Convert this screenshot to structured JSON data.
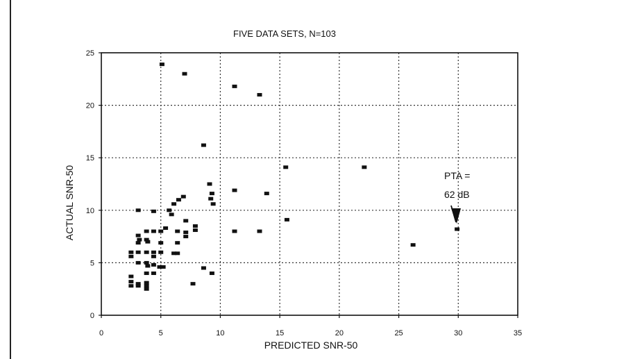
{
  "chart_data": {
    "type": "scatter",
    "title": "FIVE DATA SETS, N=103",
    "xlabel": "PREDICTED SNR-50",
    "ylabel": "ACTUAL SNR-50",
    "xlim": [
      0,
      35
    ],
    "ylim": [
      0,
      25
    ],
    "xticks": [
      0,
      5,
      10,
      15,
      20,
      25,
      30,
      35
    ],
    "yticks": [
      0,
      5,
      10,
      15,
      20,
      25
    ],
    "grid": true,
    "marker": "square",
    "color": "#111111",
    "annotation": {
      "line1": "PTA =",
      "line2": "62 dB",
      "target": [
        29.9,
        8.2
      ]
    },
    "points": [
      [
        5.1,
        23.9
      ],
      [
        7.0,
        23.0
      ],
      [
        11.2,
        21.8
      ],
      [
        13.3,
        21.0
      ],
      [
        8.6,
        16.2
      ],
      [
        15.5,
        14.1
      ],
      [
        22.1,
        14.1
      ],
      [
        9.1,
        12.5
      ],
      [
        11.2,
        11.9
      ],
      [
        13.9,
        11.6
      ],
      [
        9.3,
        11.6
      ],
      [
        9.2,
        11.1
      ],
      [
        9.4,
        10.6
      ],
      [
        6.9,
        11.3
      ],
      [
        6.5,
        11.0
      ],
      [
        6.1,
        10.6
      ],
      [
        5.7,
        10.0
      ],
      [
        3.1,
        10.0
      ],
      [
        4.4,
        9.9
      ],
      [
        5.9,
        9.6
      ],
      [
        15.6,
        9.1
      ],
      [
        7.1,
        9.0
      ],
      [
        7.9,
        8.5
      ],
      [
        7.9,
        8.1
      ],
      [
        11.2,
        8.0
      ],
      [
        13.3,
        8.0
      ],
      [
        29.9,
        8.2
      ],
      [
        3.8,
        8.0
      ],
      [
        4.4,
        8.0
      ],
      [
        5.0,
        8.0
      ],
      [
        5.4,
        8.3
      ],
      [
        6.4,
        8.0
      ],
      [
        7.1,
        7.9
      ],
      [
        3.1,
        7.6
      ],
      [
        3.2,
        7.2
      ],
      [
        3.1,
        6.9
      ],
      [
        3.8,
        7.2
      ],
      [
        3.9,
        7.0
      ],
      [
        5.0,
        6.9
      ],
      [
        6.4,
        6.9
      ],
      [
        7.1,
        7.5
      ],
      [
        26.2,
        6.7
      ],
      [
        2.5,
        6.0
      ],
      [
        2.5,
        5.6
      ],
      [
        3.1,
        6.0
      ],
      [
        3.8,
        6.0
      ],
      [
        4.4,
        6.0
      ],
      [
        4.4,
        5.6
      ],
      [
        5.0,
        6.0
      ],
      [
        6.1,
        5.9
      ],
      [
        6.4,
        5.9
      ],
      [
        3.1,
        5.0
      ],
      [
        3.8,
        5.0
      ],
      [
        3.9,
        4.7
      ],
      [
        4.4,
        4.8
      ],
      [
        4.9,
        4.6
      ],
      [
        5.2,
        4.6
      ],
      [
        8.6,
        4.5
      ],
      [
        9.3,
        4.0
      ],
      [
        3.8,
        4.0
      ],
      [
        4.4,
        4.0
      ],
      [
        2.5,
        3.7
      ],
      [
        2.5,
        3.2
      ],
      [
        2.5,
        2.8
      ],
      [
        3.1,
        3.0
      ],
      [
        3.1,
        2.8
      ],
      [
        3.8,
        3.1
      ],
      [
        3.8,
        2.8
      ],
      [
        3.8,
        2.5
      ],
      [
        7.7,
        3.0
      ]
    ]
  }
}
